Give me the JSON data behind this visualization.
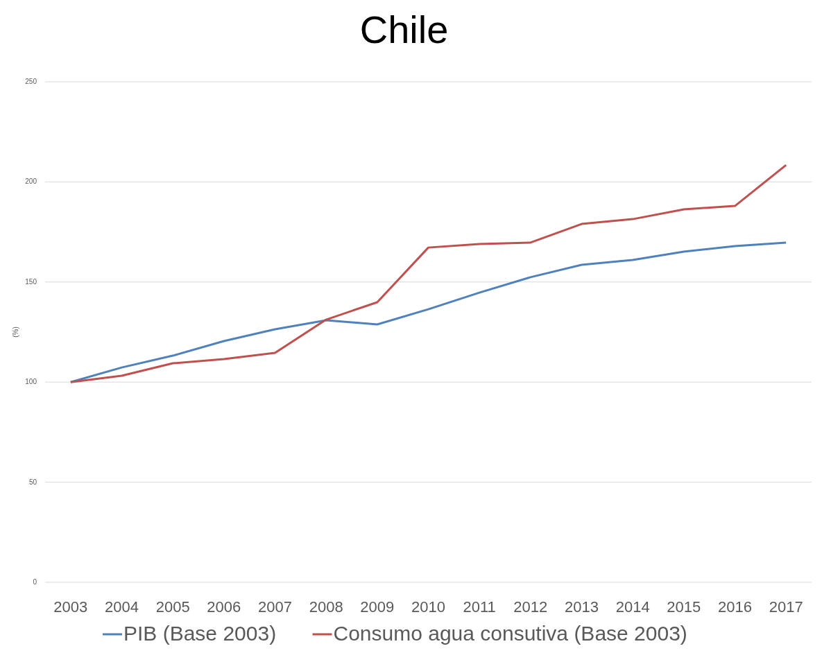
{
  "chart_data": {
    "type": "line",
    "title": "Chile",
    "ylabel": "(%)",
    "categories": [
      "2003",
      "2004",
      "2005",
      "2006",
      "2007",
      "2008",
      "2009",
      "2010",
      "2011",
      "2012",
      "2013",
      "2014",
      "2015",
      "2016",
      "2017"
    ],
    "series": [
      {
        "name": "PIB (Base 2003)",
        "color": "#4f81bd",
        "values": [
          100,
          107.3,
          113.2,
          120.5,
          126.4,
          130.9,
          128.8,
          136.4,
          144.7,
          152.4,
          158.6,
          161,
          165.2,
          167.9,
          169.7
        ]
      },
      {
        "name": "Consumo agua consutiva (Base 2003)",
        "color": "#c0504d",
        "values": [
          100,
          103.2,
          109.4,
          111.5,
          114.6,
          131.2,
          139.9,
          167.2,
          169,
          169.7,
          179,
          181.4,
          186.3,
          188,
          208.4
        ]
      }
    ],
    "ylim": [
      0,
      250
    ],
    "yticks": [
      0,
      50,
      100,
      150,
      200,
      250
    ],
    "grid": "y",
    "legend": "bottom",
    "marker": "none",
    "line_style": "solid"
  }
}
